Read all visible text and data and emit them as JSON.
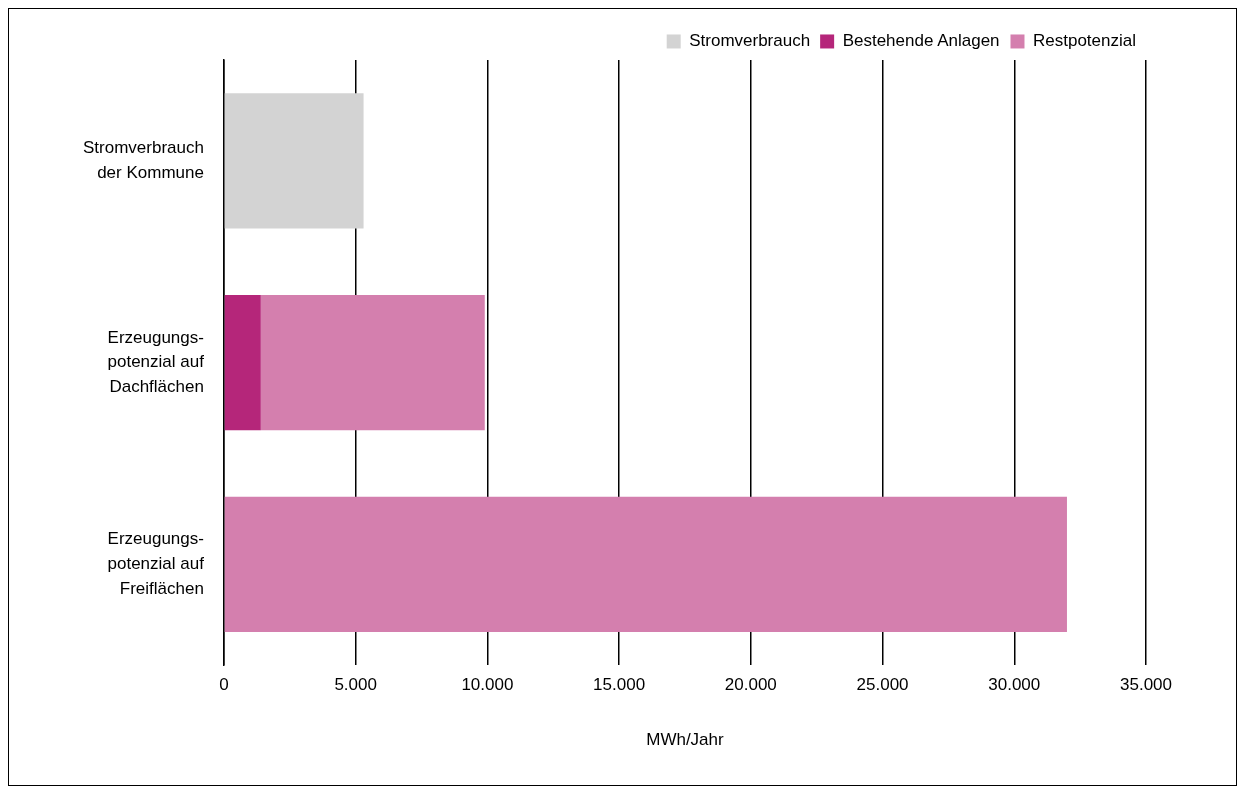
{
  "chart_data": {
    "type": "bar",
    "orientation": "horizontal",
    "stacked": true,
    "categories": [
      "Stromverbrauch\nder Kommune",
      "Erzeugungs-\npotenzial auf\nDachflächen",
      "Erzeugungs-\npotenzial auf\nFreiflächen"
    ],
    "series": [
      {
        "name": "Stromverbrauch",
        "color": "#d3d3d3",
        "values": [
          5300,
          null,
          null
        ]
      },
      {
        "name": "Bestehende Anlagen",
        "color": "#b5267a",
        "values": [
          null,
          1400,
          null
        ]
      },
      {
        "name": "Restpotenzial",
        "color": "#d47fae",
        "values": [
          null,
          8500,
          32000
        ]
      }
    ],
    "xlabel": "MWh/Jahr",
    "xlim": [
      0,
      35000
    ],
    "xticks": [
      0,
      {
        "value": 5000,
        "label": "5.000"
      },
      {
        "value": 10000,
        "label": "10.000"
      },
      {
        "value": 15000,
        "label": "15.000"
      },
      {
        "value": 20000,
        "label": "20.000"
      },
      {
        "value": 25000,
        "label": "25.000"
      },
      {
        "value": 30000,
        "label": "30.000"
      },
      {
        "value": 35000,
        "label": "35.000"
      }
    ],
    "grid": "x",
    "legend": "top right"
  }
}
